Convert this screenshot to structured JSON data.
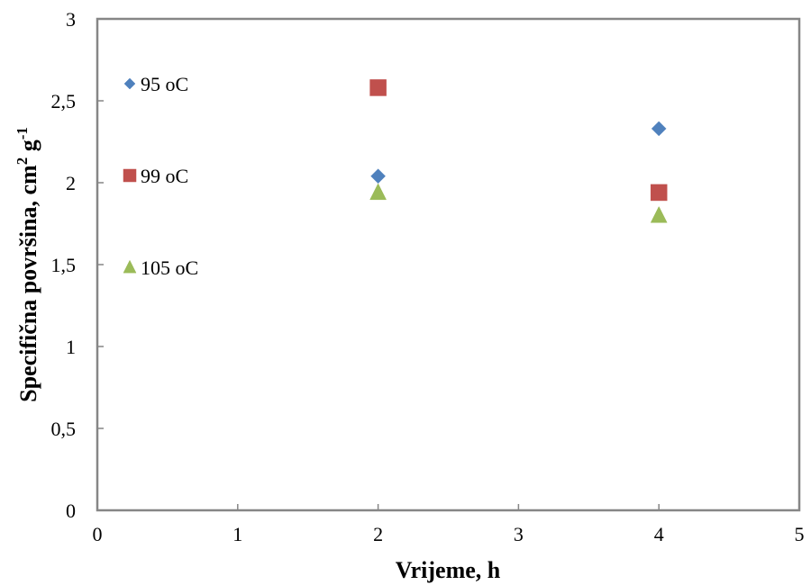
{
  "chart_data": {
    "type": "scatter",
    "title": "",
    "xlabel": "Vrijeme, h",
    "ylabel": {
      "main": "Specifična površina, cm",
      "sup1": "2",
      "mid": " g",
      "sup2": "-1"
    },
    "xlim": [
      0,
      5
    ],
    "ylim": [
      0,
      3
    ],
    "x_ticks": [
      0,
      1,
      2,
      3,
      4,
      5
    ],
    "x_tick_labels": [
      "0",
      "1",
      "2",
      "3",
      "4",
      "5"
    ],
    "y_ticks": [
      0,
      0.5,
      1,
      1.5,
      2,
      2.5,
      3
    ],
    "y_tick_labels": [
      "0",
      "0,5",
      "1",
      "1,5",
      "2",
      "2,5",
      "3"
    ],
    "grid": false,
    "legend_placement": "inside-left",
    "series": [
      {
        "name": "95 oC",
        "marker": "diamond",
        "color": "#4f81bd",
        "points": [
          {
            "x": 2,
            "y": 2.04
          },
          {
            "x": 4,
            "y": 2.33
          }
        ]
      },
      {
        "name": "99 oC",
        "marker": "square",
        "color": "#c0504d",
        "points": [
          {
            "x": 2,
            "y": 2.58
          },
          {
            "x": 4,
            "y": 1.94
          }
        ]
      },
      {
        "name": "105 oC",
        "marker": "triangle",
        "color": "#9bbb59",
        "points": [
          {
            "x": 2,
            "y": 1.94
          },
          {
            "x": 4,
            "y": 1.8
          }
        ]
      }
    ]
  }
}
